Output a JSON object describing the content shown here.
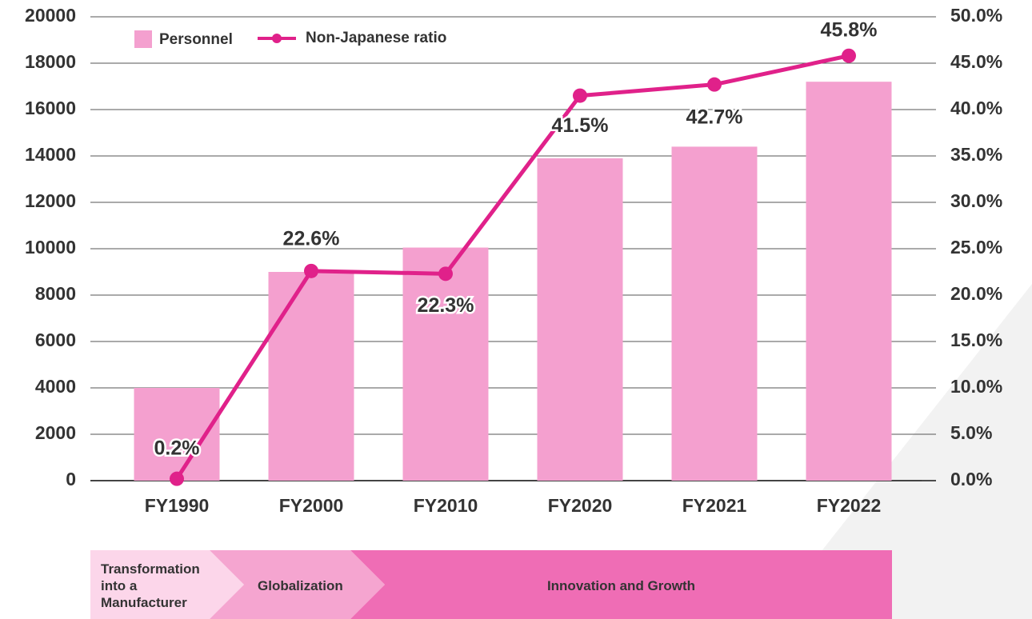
{
  "chart_data": {
    "type": "bar",
    "categories": [
      "FY1990",
      "FY2000",
      "FY2010",
      "FY2020",
      "FY2021",
      "FY2022"
    ],
    "series": [
      {
        "name": "Personnel",
        "color": "#f4a0cf",
        "values": [
          4000,
          9000,
          10050,
          13900,
          14400,
          17200
        ]
      },
      {
        "name": "Non-Japanese ratio",
        "color": "#e0218a",
        "axis": "y2",
        "type": "line",
        "values": [
          0.2,
          22.6,
          22.3,
          41.5,
          42.7,
          45.8
        ],
        "value_labels": [
          "0.2%",
          "22.6%",
          "22.3%",
          "41.5%",
          "42.7%",
          "45.8%"
        ]
      }
    ],
    "ylim": [
      0,
      20000
    ],
    "yticks": [
      0,
      2000,
      4000,
      6000,
      8000,
      10000,
      12000,
      14000,
      16000,
      18000,
      20000
    ],
    "y2lim": [
      0,
      50
    ],
    "y2ticks": [
      {
        "value": 0,
        "label": "0.0%"
      },
      {
        "value": 5,
        "label": "5.0%"
      },
      {
        "value": 10,
        "label": "10.0%"
      },
      {
        "value": 15,
        "label": "15.0%"
      },
      {
        "value": 20,
        "label": "20.0%"
      },
      {
        "value": 25,
        "label": "25.0%"
      },
      {
        "value": 30,
        "label": "30.0%"
      },
      {
        "value": 35,
        "label": "35.0%"
      },
      {
        "value": 40,
        "label": "40.0%"
      },
      {
        "value": 45,
        "label": "45.0%"
      },
      {
        "value": 50,
        "label": "50.0%"
      }
    ],
    "grid": true,
    "legend": "top-left",
    "phases": [
      "Transformation into a Manufacturer",
      "Globalization",
      "Innovation and Growth"
    ]
  }
}
